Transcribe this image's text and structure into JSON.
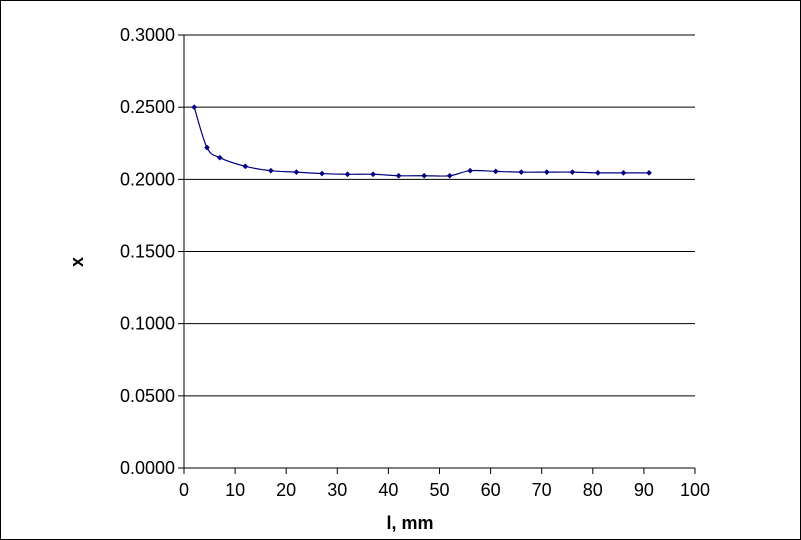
{
  "chart_data": {
    "type": "line",
    "title": "",
    "xlabel": "l, mm",
    "ylabel": "x",
    "xlim": [
      0,
      100
    ],
    "ylim": [
      0,
      0.3
    ],
    "x_ticks": [
      "0",
      "10",
      "20",
      "30",
      "40",
      "50",
      "60",
      "70",
      "80",
      "90",
      "100"
    ],
    "y_ticks": [
      "0.0000",
      "0.0500",
      "0.1000",
      "0.1500",
      "0.2000",
      "0.2500",
      "0.3000"
    ],
    "grid": "horizontal",
    "legend": "none",
    "series": [
      {
        "color": "#000080",
        "marker": "diamond",
        "x": [
          2,
          4.5,
          7,
          12,
          17,
          22,
          27,
          32,
          37,
          42,
          47,
          52,
          56,
          61,
          66,
          71,
          76,
          81,
          86,
          91
        ],
        "y": [
          0.25,
          0.222,
          0.215,
          0.209,
          0.206,
          0.205,
          0.204,
          0.2035,
          0.2035,
          0.2025,
          0.2025,
          0.2025,
          0.206,
          0.2055,
          0.205,
          0.205,
          0.205,
          0.2045,
          0.2045,
          0.2045
        ]
      }
    ]
  }
}
